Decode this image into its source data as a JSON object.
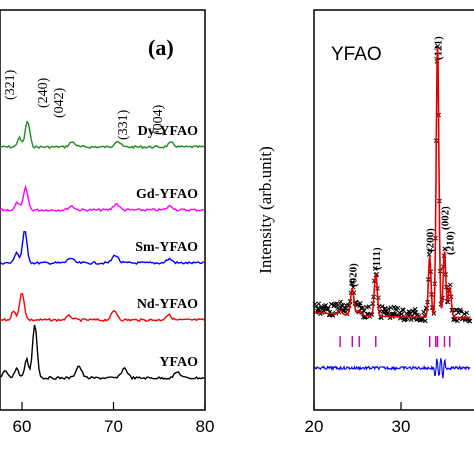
{
  "chart_data": [
    {
      "type": "line",
      "panel_label": "(a)",
      "x_range": [
        50,
        80
      ],
      "x_ticks": [
        "60",
        "70",
        "80"
      ],
      "series": [
        {
          "name": "Dy-YFAO",
          "color": "#1e8c1e",
          "peaks": [
            60.6,
            65.5,
            70.4,
            76.3
          ]
        },
        {
          "name": "Gd-YFAO",
          "color": "#ff00ff",
          "peaks": [
            60.4,
            65.4,
            70.3,
            76.2
          ]
        },
        {
          "name": "Sm-YFAO",
          "color": "#0000ff",
          "peaks": [
            60.3,
            65.3,
            70.2,
            76.1
          ]
        },
        {
          "name": "Nd-YFAO",
          "color": "#ff0000",
          "peaks": [
            60.0,
            65.2,
            70.1,
            76.0
          ]
        },
        {
          "name": "YFAO",
          "color": "#000000",
          "peaks": [
            61.4,
            66.2,
            71.2,
            77.0
          ]
        }
      ],
      "annotations": [
        "(321)",
        "(240)",
        "(042)",
        "(331)",
        "(004)"
      ]
    },
    {
      "type": "scatter",
      "title": "YFAO",
      "ylabel": "Intensity (arb.unit)",
      "x_range": [
        20,
        40
      ],
      "x_ticks": [
        "20",
        "30"
      ],
      "peak_labels": [
        {
          "label": "(020)",
          "x": 24.4
        },
        {
          "label": "(111)",
          "x": 27.1
        },
        {
          "label": "(200)",
          "x": 33.3
        },
        {
          "label": "(121)",
          "x": 34.2
        },
        {
          "label": "(002)",
          "x": 35.0
        },
        {
          "label": "(210)",
          "x": 35.6
        }
      ],
      "bragg_positions": [
        23.0,
        24.4,
        25.2,
        27.1,
        33.3,
        34.0,
        34.2,
        35.0,
        35.6
      ],
      "series": [
        {
          "name": "observed",
          "color": "#000000"
        },
        {
          "name": "calculated",
          "color": "#ff0000"
        },
        {
          "name": "difference",
          "color": "#0000ff"
        }
      ]
    }
  ]
}
